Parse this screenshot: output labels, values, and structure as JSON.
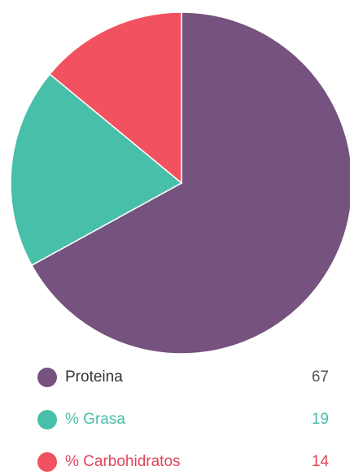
{
  "chart_data": {
    "type": "pie",
    "categories": [
      "Proteina",
      "% Grasa",
      "% Carbohidratos"
    ],
    "values": [
      67,
      19,
      14
    ],
    "colors": [
      "#76527f",
      "#47bfa9",
      "#f2515f"
    ]
  },
  "legend": {
    "items": [
      {
        "label": "Proteina",
        "value": "67",
        "color": "#76527f",
        "text_color": "#333333",
        "value_color": "#555555"
      },
      {
        "label": "% Grasa",
        "value": "19",
        "color": "#47bfa9",
        "text_color": "#47bfa9",
        "value_color": "#47bfa9"
      },
      {
        "label": "% Carbohidratos",
        "value": "14",
        "color": "#f2515f",
        "text_color": "#e2445a",
        "value_color": "#e2445a"
      }
    ]
  }
}
